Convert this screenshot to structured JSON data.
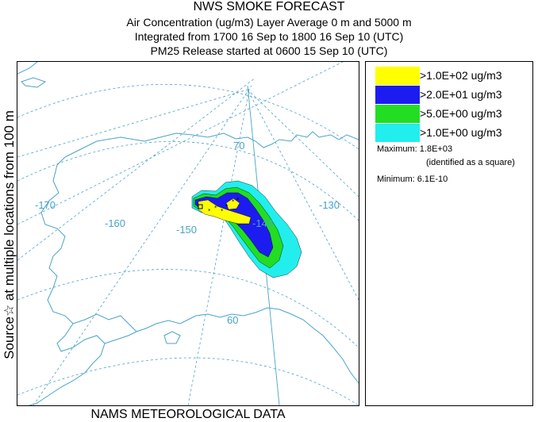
{
  "header": {
    "title": "NWS SMOKE FORECAST",
    "line2": "Air Concentration (ug/m3) Layer Average    0 m and  5000 m",
    "line3": "Integrated from 1700 16 Sep to 1800 16 Sep 10 (UTC)",
    "line4": "PM25 Release started at 0600 15 Sep 10 (UTC)"
  },
  "side_label": "Source☆ at multiple locations  from   100 m",
  "footer": "NAMS METEOROLOGICAL DATA",
  "map": {
    "longitude_labels": [
      "-170",
      "-160",
      "-150",
      "-140",
      "-130"
    ],
    "latitude_labels": [
      "70",
      "60"
    ],
    "colors": {
      "graticule": "#4aa3c8",
      "coastline": "#4aa3c8",
      "land_fill": "#ffffff"
    }
  },
  "legend": {
    "items": [
      {
        "label": ">1.0E+02 ug/m3",
        "color": "#ffff00"
      },
      {
        "label": ">2.0E+01 ug/m3",
        "color": "#1c1cf0"
      },
      {
        "label": ">5.0E+00 ug/m3",
        "color": "#22dd22"
      },
      {
        "label": ">1.0E+00 ug/m3",
        "color": "#22eeee"
      }
    ],
    "maximum_label": "Maximum: 1.8E+03",
    "maximum_note": "(identified as a square)",
    "minimum_label": "Minimum: 6.1E-10"
  }
}
